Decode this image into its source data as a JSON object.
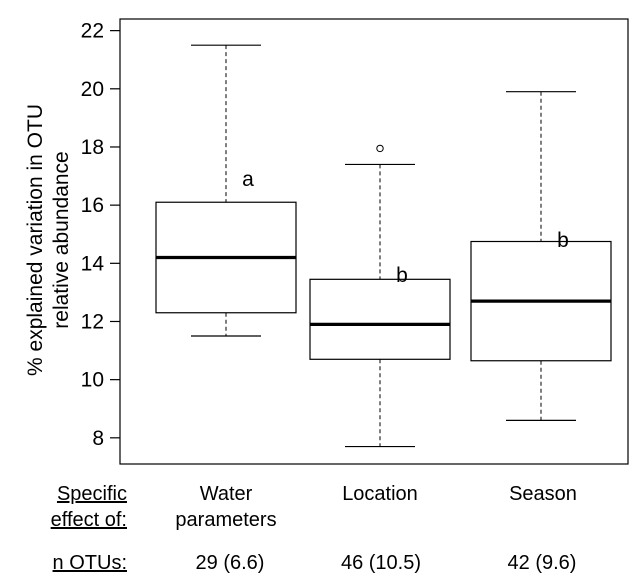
{
  "chart_data": {
    "type": "box",
    "ylabel": "% explained variation in OTU relative abundance",
    "ylabel_lines": [
      "% explained variation in OTU",
      "relative abundance"
    ],
    "ylim": [
      7.1,
      22.4
    ],
    "yticks": [
      8,
      10,
      12,
      14,
      16,
      18,
      20,
      22
    ],
    "grid": false,
    "boxes": [
      {
        "category": "Water parameters",
        "category_lines": [
          "Water",
          "parameters"
        ],
        "whisker_low": 11.5,
        "q1": 12.3,
        "median": 14.2,
        "q3": 16.1,
        "whisker_high": 21.5,
        "outliers": [],
        "group_letter": "a",
        "letter_y": 16.9,
        "n_otus": "29 (6.6)"
      },
      {
        "category": "Location",
        "category_lines": [
          "Location"
        ],
        "whisker_low": 7.7,
        "q1": 10.7,
        "median": 11.9,
        "q3": 13.45,
        "whisker_high": 17.4,
        "outliers": [
          17.95
        ],
        "group_letter": "b",
        "letter_y": 13.6,
        "n_otus": "46 (10.5)"
      },
      {
        "category": "Season",
        "category_lines": [
          "Season"
        ],
        "whisker_low": 8.6,
        "q1": 10.65,
        "median": 12.7,
        "q3": 14.75,
        "whisker_high": 19.9,
        "outliers": [],
        "group_letter": "b",
        "letter_y": 14.8,
        "n_otus": "42 (9.6)"
      }
    ]
  },
  "footer": {
    "specific_label_line1": "Specific",
    "specific_label_line2": "effect of:",
    "n_label": "n OTUs:"
  }
}
